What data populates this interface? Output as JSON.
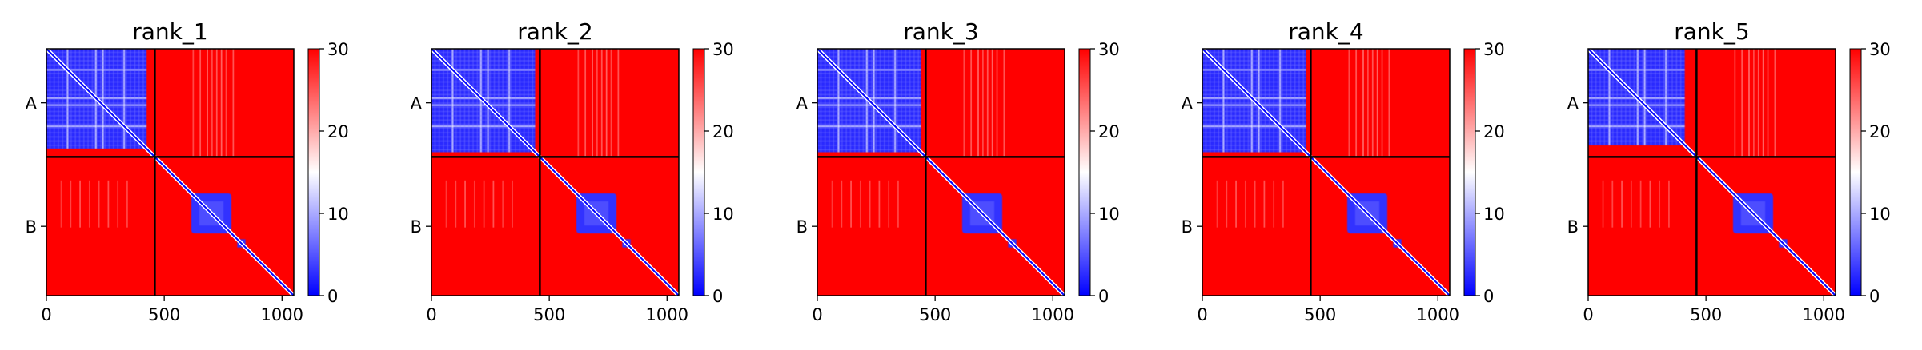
{
  "chart_data": {
    "type": "heatmap",
    "colormap": {
      "name": "bwr",
      "low_color": "#0000ff",
      "mid_color": "#ffffff",
      "high_color": "#ff0000"
    },
    "domain_color": "#000000",
    "shared": {
      "chain_labels": [
        "A",
        "B"
      ],
      "chain_boundary": 460,
      "length": 1050,
      "x_ticks": [
        0,
        500,
        1000
      ],
      "x_tick_labels": [
        "0",
        "500",
        "1000"
      ],
      "y_tick_positions": [
        230,
        755
      ],
      "xlim": [
        0,
        1050
      ],
      "ylim": [
        1050,
        0
      ],
      "colorbar": {
        "ticks": [
          0,
          10,
          20,
          30
        ],
        "tick_labels": [
          "0",
          "10",
          "20",
          "30"
        ],
        "range": [
          0,
          30
        ]
      }
    },
    "panels": [
      {
        "title": "rank_1",
        "a_block_width": 425,
        "b_core_center": 700,
        "b_core_half": 85
      },
      {
        "title": "rank_2",
        "a_block_width": 440,
        "b_core_center": 700,
        "b_core_half": 85
      },
      {
        "title": "rank_3",
        "a_block_width": 440,
        "b_core_center": 700,
        "b_core_half": 85
      },
      {
        "title": "rank_4",
        "a_block_width": 440,
        "b_core_center": 700,
        "b_core_half": 85
      },
      {
        "title": "rank_5",
        "a_block_width": 410,
        "b_core_center": 700,
        "b_core_half": 85
      }
    ]
  }
}
